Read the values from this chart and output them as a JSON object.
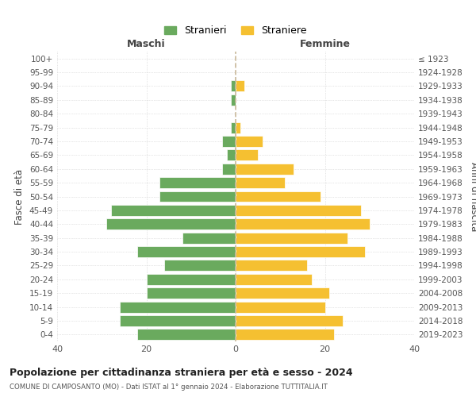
{
  "age_groups": [
    "0-4",
    "5-9",
    "10-14",
    "15-19",
    "20-24",
    "25-29",
    "30-34",
    "35-39",
    "40-44",
    "45-49",
    "50-54",
    "55-59",
    "60-64",
    "65-69",
    "70-74",
    "75-79",
    "80-84",
    "85-89",
    "90-94",
    "95-99",
    "100+"
  ],
  "birth_years": [
    "2019-2023",
    "2014-2018",
    "2009-2013",
    "2004-2008",
    "1999-2003",
    "1994-1998",
    "1989-1993",
    "1984-1988",
    "1979-1983",
    "1974-1978",
    "1969-1973",
    "1964-1968",
    "1959-1963",
    "1954-1958",
    "1949-1953",
    "1944-1948",
    "1939-1943",
    "1934-1938",
    "1929-1933",
    "1924-1928",
    "≤ 1923"
  ],
  "males": [
    22,
    26,
    26,
    20,
    20,
    16,
    22,
    12,
    29,
    28,
    17,
    17,
    3,
    2,
    3,
    1,
    0,
    1,
    1,
    0,
    0
  ],
  "females": [
    22,
    24,
    20,
    21,
    17,
    16,
    29,
    25,
    30,
    28,
    19,
    11,
    13,
    5,
    6,
    1,
    0,
    0,
    2,
    0,
    0
  ],
  "male_color": "#6aaa5e",
  "female_color": "#f5c031",
  "background_color": "#ffffff",
  "grid_color": "#cccccc",
  "dashed_line_color": "#c8b89a",
  "title": "Popolazione per cittadinanza straniera per età e sesso - 2024",
  "subtitle": "COMUNE DI CAMPOSANTO (MO) - Dati ISTAT al 1° gennaio 2024 - Elaborazione TUTTITALIA.IT",
  "xlabel_left": "Maschi",
  "xlabel_right": "Femmine",
  "ylabel_left": "Fasce di età",
  "ylabel_right": "Anni di nascita",
  "xlim": 40,
  "legend_stranieri": "Stranieri",
  "legend_straniere": "Straniere"
}
